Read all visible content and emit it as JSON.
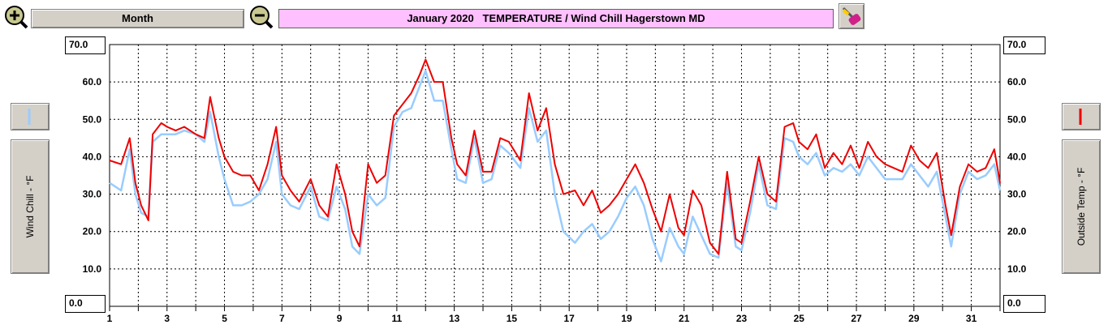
{
  "toolbar": {
    "period_label": "Month",
    "title": "January 2020   TEMPERATURE / Wind Chill Hagerstown MD",
    "zoom_in_icon": "magnifier-plus-icon",
    "zoom_out_icon": "magnifier-minus-icon",
    "tool_icon": "marker-eraser-icon"
  },
  "left_axis": {
    "label": "Wind Chill - °F",
    "top_value": "70.0",
    "bottom_value": "0.0"
  },
  "right_axis": {
    "label": "Outside Temp - °F",
    "top_value": "70.0",
    "bottom_value": "0.0"
  },
  "colors": {
    "wind_chill": "#99ccff",
    "outside_temp": "#ee0000",
    "title_bg": "#ffc0ff"
  },
  "chart_data": {
    "type": "line",
    "xlim": [
      1,
      32
    ],
    "ylim": [
      0,
      70
    ],
    "yticks": [
      70,
      60,
      50,
      40,
      30,
      20,
      10,
      0
    ],
    "ytick_labels": [
      "70.0",
      "60.0",
      "50.0",
      "40.0",
      "30.0",
      "20.0",
      "10.0",
      "0.0"
    ],
    "xtick_labels": [
      "1",
      "3",
      "5",
      "7",
      "9",
      "11",
      "13",
      "15",
      "17",
      "19",
      "21",
      "23",
      "25",
      "27",
      "29",
      "31"
    ],
    "xtick_values": [
      1,
      3,
      5,
      7,
      9,
      11,
      13,
      15,
      17,
      19,
      21,
      23,
      25,
      27,
      29,
      31
    ],
    "grid": true,
    "series": [
      {
        "name": "Outside Temp",
        "color": "#ee0000",
        "x": [
          1,
          1.4,
          1.7,
          1.9,
          2.1,
          2.35,
          2.5,
          2.8,
          3.0,
          3.3,
          3.6,
          4.0,
          4.3,
          4.5,
          4.8,
          5.0,
          5.3,
          5.6,
          5.9,
          6.2,
          6.5,
          6.8,
          7.0,
          7.3,
          7.6,
          8.0,
          8.3,
          8.6,
          8.9,
          9.2,
          9.45,
          9.7,
          10.0,
          10.3,
          10.6,
          10.9,
          11.2,
          11.5,
          11.8,
          12.0,
          12.3,
          12.6,
          12.9,
          13.1,
          13.4,
          13.7,
          14.0,
          14.3,
          14.6,
          14.9,
          15.3,
          15.6,
          15.9,
          16.2,
          16.5,
          16.8,
          17.2,
          17.5,
          17.8,
          18.1,
          18.4,
          18.7,
          19.0,
          19.3,
          19.6,
          19.9,
          20.2,
          20.5,
          20.8,
          21.0,
          21.3,
          21.6,
          21.9,
          22.2,
          22.5,
          22.8,
          23.0,
          23.3,
          23.6,
          23.9,
          24.2,
          24.5,
          24.8,
          25.0,
          25.3,
          25.6,
          25.9,
          26.2,
          26.5,
          26.8,
          27.1,
          27.4,
          27.7,
          28.0,
          28.3,
          28.6,
          28.9,
          29.2,
          29.5,
          29.8,
          30.1,
          30.3,
          30.6,
          30.9,
          31.2,
          31.5,
          31.8,
          32
        ],
        "y": [
          39,
          38,
          45,
          33,
          27,
          23,
          46,
          49,
          48,
          47,
          48,
          46,
          45,
          56,
          45,
          40,
          36,
          35,
          35,
          31,
          38,
          48,
          35,
          31,
          28,
          34,
          27,
          24,
          38,
          30,
          20,
          16,
          38,
          33,
          35,
          51,
          54,
          57,
          62,
          66,
          60,
          60,
          45,
          38,
          35,
          47,
          36,
          36,
          45,
          44,
          39,
          57,
          47,
          53,
          38,
          30,
          31,
          27,
          31,
          25,
          27,
          30,
          34,
          38,
          33,
          26,
          20,
          30,
          21,
          19,
          31,
          27,
          17,
          14,
          36,
          18,
          17,
          28,
          40,
          30,
          28,
          48,
          49,
          44,
          42,
          46,
          37,
          41,
          38,
          43,
          37,
          44,
          40,
          38,
          37,
          36,
          43,
          39,
          37,
          41,
          27,
          19,
          32,
          38,
          36,
          37,
          42,
          33
        ],
        "color_key": "outside_temp"
      },
      {
        "name": "Wind Chill",
        "color": "#99ccff",
        "x": [
          1,
          1.4,
          1.7,
          1.9,
          2.1,
          2.35,
          2.5,
          2.8,
          3.0,
          3.3,
          3.6,
          4.0,
          4.3,
          4.5,
          4.8,
          5.0,
          5.3,
          5.6,
          5.9,
          6.2,
          6.5,
          6.8,
          7.0,
          7.3,
          7.6,
          8.0,
          8.3,
          8.6,
          8.9,
          9.2,
          9.45,
          9.7,
          10.0,
          10.3,
          10.6,
          10.9,
          11.2,
          11.5,
          11.8,
          12.0,
          12.3,
          12.6,
          12.9,
          13.1,
          13.4,
          13.7,
          14.0,
          14.3,
          14.6,
          14.9,
          15.3,
          15.6,
          15.9,
          16.2,
          16.5,
          16.8,
          17.2,
          17.5,
          17.8,
          18.1,
          18.4,
          18.7,
          19.0,
          19.3,
          19.6,
          19.9,
          20.2,
          20.5,
          20.8,
          21.0,
          21.3,
          21.6,
          21.9,
          22.2,
          22.5,
          22.8,
          23.0,
          23.3,
          23.6,
          23.9,
          24.2,
          24.5,
          24.8,
          25.0,
          25.3,
          25.6,
          25.9,
          26.2,
          26.5,
          26.8,
          27.1,
          27.4,
          27.7,
          28.0,
          28.3,
          28.6,
          28.9,
          29.2,
          29.5,
          29.8,
          30.1,
          30.3,
          30.6,
          30.9,
          31.2,
          31.5,
          31.8,
          32
        ],
        "y": [
          33,
          31,
          42,
          30,
          25,
          24,
          44,
          46,
          46,
          46,
          47,
          46,
          44,
          52,
          40,
          34,
          27,
          27,
          28,
          30,
          34,
          44,
          30,
          27,
          26,
          32,
          24,
          23,
          32,
          26,
          16,
          14,
          30,
          27,
          29,
          48,
          52,
          53,
          59,
          63,
          55,
          55,
          42,
          34,
          33,
          45,
          33,
          34,
          43,
          41,
          37,
          53,
          44,
          47,
          30,
          20,
          17,
          20,
          22,
          18,
          20,
          24,
          29,
          32,
          27,
          18,
          12,
          21,
          16,
          14,
          24,
          19,
          14,
          13,
          33,
          16,
          15,
          25,
          38,
          27,
          26,
          45,
          44,
          40,
          38,
          41,
          35,
          37,
          36,
          38,
          35,
          40,
          37,
          34,
          34,
          34,
          38,
          35,
          32,
          36,
          24,
          16,
          30,
          36,
          34,
          35,
          38,
          31
        ],
        "color_key": "wind_chill"
      }
    ]
  }
}
